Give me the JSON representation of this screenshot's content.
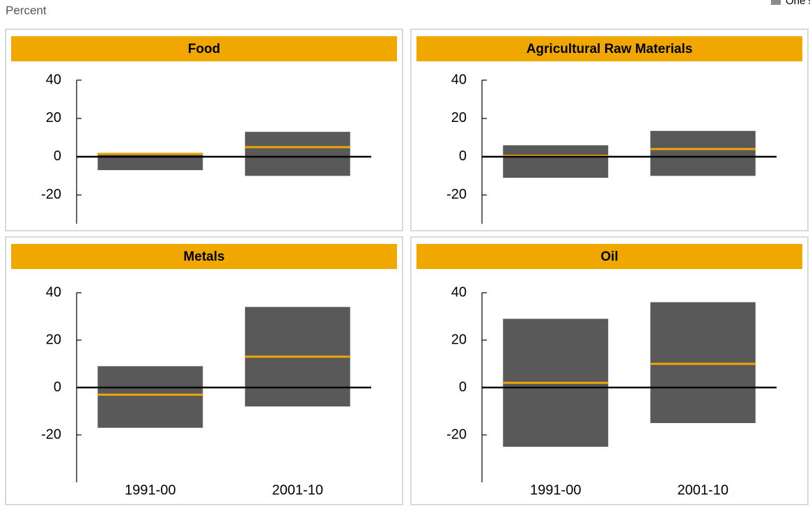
{
  "unit_label": "Percent",
  "legend_label": "One standard deviation",
  "chart_data": [
    {
      "type": "range",
      "title": "Food",
      "categories": [
        null,
        null
      ],
      "ylim": [
        -35,
        40
      ],
      "yticks": [
        40,
        20,
        0,
        -20
      ],
      "low": [
        -7,
        -10
      ],
      "high": [
        2,
        13
      ],
      "mean": [
        1.5,
        5
      ],
      "box_color": "#595959",
      "mean_color": "#f0a800"
    },
    {
      "type": "range",
      "title": "Agricultural Raw Materials",
      "categories": [
        null,
        null
      ],
      "ylim": [
        -35,
        40
      ],
      "yticks": [
        40,
        20,
        0,
        -20
      ],
      "low": [
        -11,
        -10
      ],
      "high": [
        6,
        13.5
      ],
      "mean": [
        0.5,
        4
      ],
      "box_color": "#595959",
      "mean_color": "#f0a800"
    },
    {
      "type": "range",
      "title": "Metals",
      "categories": [
        "1991-00",
        "2001-10"
      ],
      "ylim": [
        -40,
        40
      ],
      "yticks": [
        40,
        20,
        0,
        -20
      ],
      "low": [
        -17,
        -8
      ],
      "high": [
        9,
        34
      ],
      "mean": [
        -3,
        13
      ],
      "box_color": "#595959",
      "mean_color": "#f0a800"
    },
    {
      "type": "range",
      "title": "Oil",
      "categories": [
        "1991-00",
        "2001-10"
      ],
      "ylim": [
        -40,
        40
      ],
      "yticks": [
        40,
        20,
        0,
        -20
      ],
      "low": [
        -25,
        -15
      ],
      "high": [
        29,
        36
      ],
      "mean": [
        2,
        10
      ],
      "box_color": "#595959",
      "mean_color": "#f0a800"
    }
  ]
}
